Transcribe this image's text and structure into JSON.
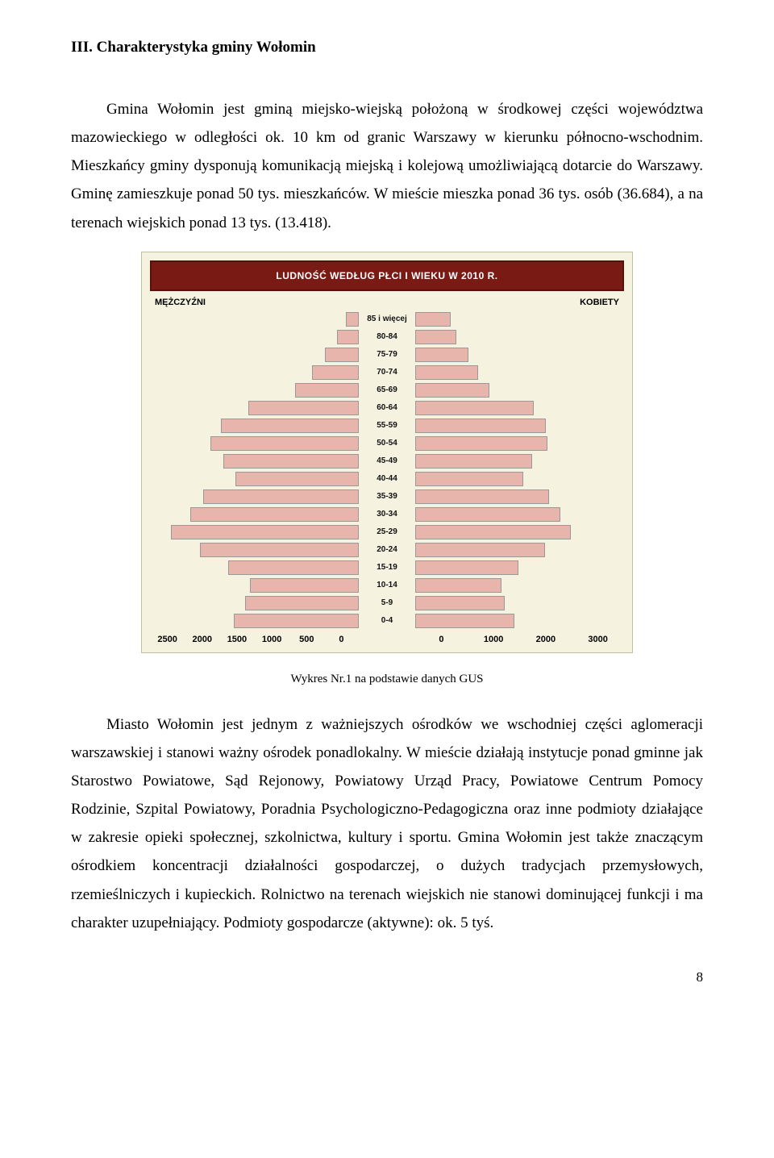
{
  "heading": "III. Charakterystyka gminy Wołomin",
  "paragraph1": "Gmina Wołomin jest gminą miejsko-wiejską położoną w środkowej części województwa mazowieckiego w odległości ok. 10 km od granic Warszawy w kierunku północno-wschodnim. Mieszkańcy gminy dysponują komunikacją miejską i kolejową umożliwiającą dotarcie do Warszawy. Gminę zamieszkuje ponad 50 tys. mieszkańców. W mieście mieszka ponad 36 tys. osób (36.684), a na terenach wiejskich ponad 13 tys. (13.418).",
  "chart": {
    "type": "population-pyramid",
    "title": "LUDNOŚĆ WEDŁUG PŁCI I WIEKU W 2010 R.",
    "left_label": "MĘŻCZYŹNI",
    "right_label": "KOBIETY",
    "background": "#f5f3e0",
    "title_bg": "#7a1a15",
    "title_text_color": "#ffffff",
    "bar_color": "#e8b5ac",
    "bar_border": "#999999",
    "age_groups": [
      "85 i więcej",
      "80-84",
      "75-79",
      "70-74",
      "65-69",
      "60-64",
      "55-59",
      "50-54",
      "45-49",
      "40-44",
      "35-39",
      "30-34",
      "25-29",
      "20-24",
      "15-19",
      "10-14",
      "5-9",
      "0-4"
    ],
    "male_values": [
      150,
      260,
      410,
      560,
      760,
      1320,
      1650,
      1780,
      1620,
      1480,
      1860,
      2020,
      2250,
      1900,
      1560,
      1300,
      1360,
      1500
    ],
    "female_values": [
      510,
      590,
      760,
      900,
      1060,
      1700,
      1880,
      1900,
      1680,
      1550,
      1920,
      2080,
      2240,
      1860,
      1480,
      1240,
      1280,
      1420
    ],
    "male_axis_ticks": [
      "2500",
      "2000",
      "1500",
      "1000",
      "500",
      "0"
    ],
    "female_axis_ticks": [
      "0",
      "1000",
      "2000",
      "3000"
    ],
    "male_max": 2500,
    "female_max": 3000,
    "label_fontsize": 10
  },
  "caption": "Wykres Nr.1 na podstawie danych GUS",
  "paragraph2": "Miasto Wołomin jest jednym z ważniejszych ośrodków we wschodniej części aglomeracji warszawskiej i stanowi ważny ośrodek ponadlokalny. W mieście działają instytucje ponad gminne jak Starostwo Powiatowe, Sąd Rejonowy, Powiatowy Urząd Pracy, Powiatowe Centrum Pomocy Rodzinie, Szpital Powiatowy, Poradnia Psychologiczno-Pedagogiczna oraz inne podmioty działające w zakresie opieki społecznej, szkolnictwa, kultury i sportu. Gmina Wołomin jest także znaczącym ośrodkiem koncentracji działalności gospodarczej, o dużych tradycjach przemysłowych, rzemieślniczych i kupieckich. Rolnictwo na terenach wiejskich nie stanowi dominującej funkcji i ma charakter uzupełniający. Podmioty gospodarcze (aktywne): ok. 5 tyś.",
  "page_number": "8"
}
